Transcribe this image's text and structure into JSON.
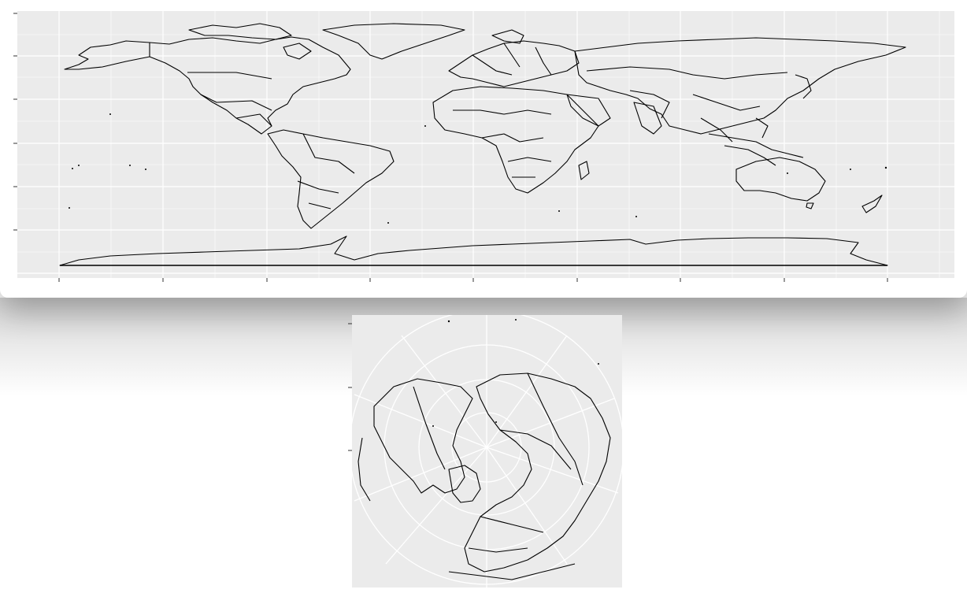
{
  "figure": {
    "type": "map",
    "panels": [
      {
        "id": "world-equirectangular",
        "projection": "equirectangular",
        "lon_range": [
          -180,
          180
        ],
        "lat_range": [
          -90,
          90
        ],
        "background": "#ebebeb",
        "grid_color": "#ffffff",
        "outline_color": "#000000",
        "axis_tick_labels_visible": false
      },
      {
        "id": "north-polar-orthographic",
        "projection": "orthographic",
        "center": "north-pole",
        "background": "#ebebeb",
        "grid_color": "#ffffff",
        "outline_color": "#000000",
        "axis_tick_labels_visible": false
      }
    ]
  }
}
